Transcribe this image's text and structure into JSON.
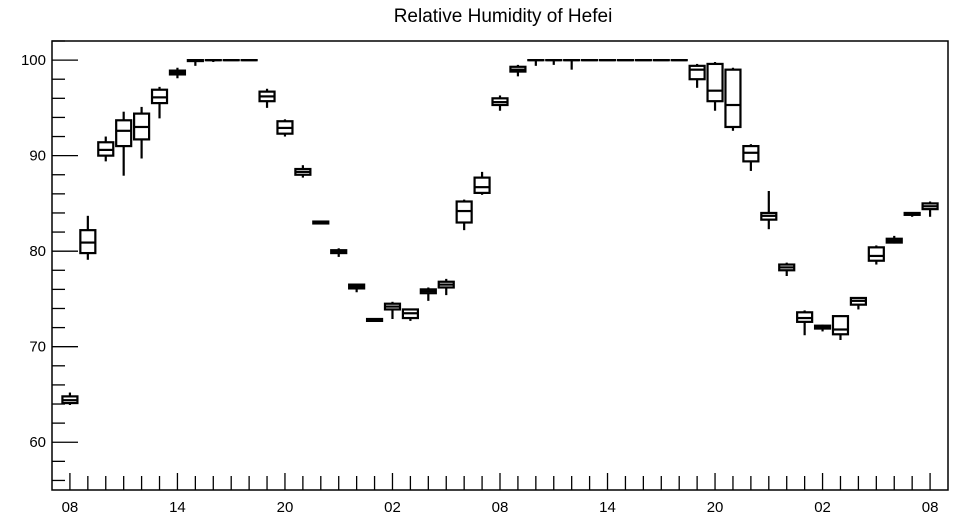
{
  "chart_data": {
    "type": "boxplot",
    "title": "Relative Humidity of Hefei",
    "xlabel": "",
    "ylabel": "",
    "ylim": [
      55,
      102
    ],
    "yticks": [
      60,
      70,
      80,
      90,
      100
    ],
    "x_tick_labels": [
      "08",
      "14",
      "20",
      "02",
      "08",
      "14",
      "20",
      "02",
      "08"
    ],
    "x_tick_hours": [
      0,
      6,
      12,
      18,
      24,
      30,
      36,
      42,
      48
    ],
    "x_range_hours": [
      -1,
      49
    ],
    "grid": false,
    "series": [
      {
        "boxes": [
          {
            "h": 0,
            "min": 63.9,
            "q1": 64.1,
            "med": 64.4,
            "q3": 64.8,
            "max": 65.2
          },
          {
            "h": 1,
            "min": 79.1,
            "q1": 79.8,
            "med": 80.9,
            "q3": 82.2,
            "max": 83.7
          },
          {
            "h": 2,
            "min": 89.4,
            "q1": 90.0,
            "med": 90.6,
            "q3": 91.4,
            "max": 92.0
          },
          {
            "h": 3,
            "min": 87.9,
            "q1": 91.0,
            "med": 92.6,
            "q3": 93.7,
            "max": 94.6
          },
          {
            "h": 4,
            "min": 89.7,
            "q1": 91.7,
            "med": 93.0,
            "q3": 94.4,
            "max": 95.1
          },
          {
            "h": 5,
            "min": 93.9,
            "q1": 95.5,
            "med": 96.1,
            "q3": 96.9,
            "max": 97.2
          },
          {
            "h": 6,
            "min": 98.1,
            "q1": 98.5,
            "med": 98.7,
            "q3": 98.9,
            "max": 99.2
          },
          {
            "h": 7,
            "min": 99.4,
            "q1": 99.9,
            "med": 100.0,
            "q3": 100.0,
            "max": 100.0
          },
          {
            "h": 8,
            "min": 99.8,
            "q1": 100.0,
            "med": 100.0,
            "q3": 100.0,
            "max": 100.0
          },
          {
            "h": 9,
            "min": 100.0,
            "q1": 100.0,
            "med": 100.0,
            "q3": 100.0,
            "max": 100.0
          },
          {
            "h": 10,
            "min": 100.0,
            "q1": 100.0,
            "med": 100.0,
            "q3": 100.0,
            "max": 100.0
          },
          {
            "h": 11,
            "min": 95.0,
            "q1": 95.7,
            "med": 96.2,
            "q3": 96.7,
            "max": 97.0
          },
          {
            "h": 12,
            "min": 92.0,
            "q1": 92.3,
            "med": 92.9,
            "q3": 93.6,
            "max": 93.8
          },
          {
            "h": 13,
            "min": 87.7,
            "q1": 88.0,
            "med": 88.3,
            "q3": 88.6,
            "max": 89.0
          },
          {
            "h": 14,
            "min": 82.8,
            "q1": 82.9,
            "med": 83.0,
            "q3": 83.1,
            "max": 83.2
          },
          {
            "h": 15,
            "min": 79.4,
            "q1": 79.8,
            "med": 80.0,
            "q3": 80.1,
            "max": 80.3
          },
          {
            "h": 16,
            "min": 75.7,
            "q1": 76.1,
            "med": 76.3,
            "q3": 76.5,
            "max": 76.6
          },
          {
            "h": 17,
            "min": 72.6,
            "q1": 72.7,
            "med": 72.8,
            "q3": 72.9,
            "max": 73.0
          },
          {
            "h": 18,
            "min": 72.9,
            "q1": 73.9,
            "med": 74.2,
            "q3": 74.5,
            "max": 74.7
          },
          {
            "h": 19,
            "min": 72.7,
            "q1": 73.0,
            "med": 73.5,
            "q3": 73.9,
            "max": 74.0
          },
          {
            "h": 20,
            "min": 74.8,
            "q1": 75.6,
            "med": 75.8,
            "q3": 76.0,
            "max": 76.2
          },
          {
            "h": 21,
            "min": 75.4,
            "q1": 76.2,
            "med": 76.5,
            "q3": 76.8,
            "max": 77.1
          },
          {
            "h": 22,
            "min": 82.2,
            "q1": 83.0,
            "med": 84.2,
            "q3": 85.2,
            "max": 85.4
          },
          {
            "h": 23,
            "min": 85.9,
            "q1": 86.1,
            "med": 86.7,
            "q3": 87.7,
            "max": 88.3
          },
          {
            "h": 24,
            "min": 94.7,
            "q1": 95.3,
            "med": 95.6,
            "q3": 96.0,
            "max": 96.3
          },
          {
            "h": 25,
            "min": 98.3,
            "q1": 98.8,
            "med": 99.0,
            "q3": 99.3,
            "max": 99.5
          },
          {
            "h": 26,
            "min": 99.4,
            "q1": 100.0,
            "med": 100.0,
            "q3": 100.0,
            "max": 100.0
          },
          {
            "h": 27,
            "min": 99.5,
            "q1": 100.0,
            "med": 100.0,
            "q3": 100.0,
            "max": 100.0
          },
          {
            "h": 28,
            "min": 99.0,
            "q1": 100.0,
            "med": 100.0,
            "q3": 100.0,
            "max": 100.0
          },
          {
            "h": 29,
            "min": 100.0,
            "q1": 100.0,
            "med": 100.0,
            "q3": 100.0,
            "max": 100.0
          },
          {
            "h": 30,
            "min": 100.0,
            "q1": 100.0,
            "med": 100.0,
            "q3": 100.0,
            "max": 100.0
          },
          {
            "h": 31,
            "min": 100.0,
            "q1": 100.0,
            "med": 100.0,
            "q3": 100.0,
            "max": 100.0
          },
          {
            "h": 32,
            "min": 100.0,
            "q1": 100.0,
            "med": 100.0,
            "q3": 100.0,
            "max": 100.0
          },
          {
            "h": 33,
            "min": 100.0,
            "q1": 100.0,
            "med": 100.0,
            "q3": 100.0,
            "max": 100.0
          },
          {
            "h": 34,
            "min": 100.0,
            "q1": 100.0,
            "med": 100.0,
            "q3": 100.0,
            "max": 100.0
          },
          {
            "h": 35,
            "min": 97.1,
            "q1": 98.0,
            "med": 99.0,
            "q3": 99.4,
            "max": 99.6
          },
          {
            "h": 36,
            "min": 94.7,
            "q1": 95.7,
            "med": 96.8,
            "q3": 99.6,
            "max": 99.8
          },
          {
            "h": 37,
            "min": 92.6,
            "q1": 93.0,
            "med": 95.3,
            "q3": 99.0,
            "max": 99.2
          },
          {
            "h": 38,
            "min": 88.4,
            "q1": 89.4,
            "med": 90.3,
            "q3": 91.0,
            "max": 91.2
          },
          {
            "h": 39,
            "min": 82.3,
            "q1": 83.3,
            "med": 83.7,
            "q3": 84.0,
            "max": 86.3
          },
          {
            "h": 40,
            "min": 77.4,
            "q1": 78.0,
            "med": 78.3,
            "q3": 78.6,
            "max": 78.8
          },
          {
            "h": 41,
            "min": 71.2,
            "q1": 72.6,
            "med": 73.0,
            "q3": 73.6,
            "max": 73.8
          },
          {
            "h": 42,
            "min": 71.6,
            "q1": 71.9,
            "med": 72.0,
            "q3": 72.2,
            "max": 72.3
          },
          {
            "h": 43,
            "min": 70.7,
            "q1": 71.3,
            "med": 71.8,
            "q3": 73.2,
            "max": 73.3
          },
          {
            "h": 44,
            "min": 73.9,
            "q1": 74.4,
            "med": 74.8,
            "q3": 75.1,
            "max": 75.2
          },
          {
            "h": 45,
            "min": 78.6,
            "q1": 79.0,
            "med": 79.5,
            "q3": 80.4,
            "max": 80.6
          },
          {
            "h": 46,
            "min": 80.8,
            "q1": 80.9,
            "med": 81.1,
            "q3": 81.3,
            "max": 81.6
          },
          {
            "h": 47,
            "min": 83.6,
            "q1": 83.8,
            "med": 83.9,
            "q3": 84.0,
            "max": 84.1
          },
          {
            "h": 48,
            "min": 83.6,
            "q1": 84.4,
            "med": 84.7,
            "q3": 85.0,
            "max": 85.2
          }
        ]
      }
    ]
  }
}
